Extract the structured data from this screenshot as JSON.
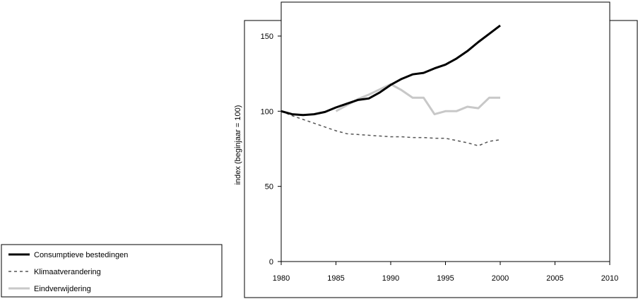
{
  "chart_data": {
    "type": "line",
    "ylabel": "index (beginjaar = 100)",
    "xlabel": "",
    "xlim": [
      1980,
      2010
    ],
    "ylim": [
      0,
      175
    ],
    "x_ticks": [
      1980,
      1985,
      1990,
      1995,
      2000,
      2005,
      2010
    ],
    "y_ticks": [
      0,
      50,
      100,
      150
    ],
    "grid": false,
    "legend_position": "bottom-left",
    "series": [
      {
        "name": "Consumptieve bestedingen",
        "style": "solid-thick",
        "color": "#000000",
        "x": [
          1980,
          1981,
          1982,
          1983,
          1984,
          1985,
          1986,
          1987,
          1988,
          1989,
          1990,
          1991,
          1992,
          1993,
          1994,
          1995,
          1996,
          1997,
          1998,
          1999,
          2000
        ],
        "y": [
          100,
          98,
          97.5,
          98,
          99.5,
          102.5,
          105,
          107.5,
          108.5,
          112.5,
          117.5,
          121.5,
          124.5,
          125.5,
          128.5,
          131,
          135,
          140,
          146,
          151.5,
          157
        ]
      },
      {
        "name": "Klimaatverandering",
        "style": "dashed",
        "color": "#555555",
        "x": [
          1980,
          1981,
          1982,
          1983,
          1984,
          1985,
          1986,
          1987,
          1988,
          1989,
          1990,
          1991,
          1992,
          1993,
          1994,
          1995,
          1996,
          1997,
          1998,
          1999,
          2000
        ],
        "y": [
          100,
          97,
          94.5,
          92,
          89.5,
          87,
          85,
          84.5,
          84,
          83.5,
          83,
          83,
          82.5,
          82.5,
          82,
          82,
          80.5,
          79,
          77,
          80,
          81
        ]
      },
      {
        "name": "Eindverwijdering",
        "style": "solid-gray",
        "color": "#c8c8c8",
        "x": [
          1985,
          1986,
          1987,
          1988,
          1989,
          1990,
          1991,
          1992,
          1993,
          1994,
          1995,
          1996,
          1997,
          1998,
          1999,
          2000
        ],
        "y": [
          100,
          104,
          108,
          111,
          114.5,
          118,
          114,
          109,
          109,
          98,
          100,
          100,
          103,
          102,
          109,
          109
        ]
      }
    ]
  }
}
